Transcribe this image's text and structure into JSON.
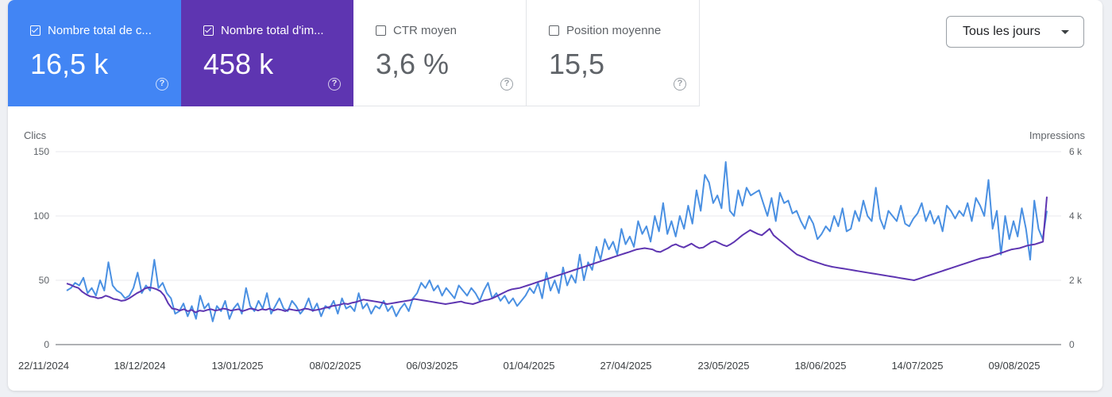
{
  "metrics": [
    {
      "label": "Nombre total de c...",
      "value": "16,5 k",
      "checked": true,
      "color": "#4285f4"
    },
    {
      "label": "Nombre total d'im...",
      "value": "458 k",
      "checked": true,
      "color": "#5e35b1"
    },
    {
      "label": "CTR moyen",
      "value": "3,6 %",
      "checked": false
    },
    {
      "label": "Position moyenne",
      "value": "15,5",
      "checked": false
    }
  ],
  "help_glyph": "?",
  "dropdown": {
    "label": "Tous les jours"
  },
  "chart_data": {
    "type": "line",
    "left_axis_label": "Clics",
    "right_axis_label": "Impressions",
    "left_ticks": [
      "150",
      "100",
      "50",
      "0"
    ],
    "right_ticks": [
      "6 k",
      "4 k",
      "2 k",
      "0"
    ],
    "left_range": [
      0,
      150
    ],
    "right_range": [
      0,
      6000
    ],
    "x_tick_labels": [
      "22/11/2024",
      "18/12/2024",
      "13/01/2025",
      "08/02/2025",
      "06/03/2025",
      "01/04/2025",
      "27/04/2025",
      "23/05/2025",
      "18/06/2025",
      "14/07/2025",
      "09/08/2025"
    ],
    "grid": true,
    "series": [
      {
        "axis": "left",
        "color": "#4a90e2",
        "values": [
          42,
          44,
          48,
          46,
          52,
          40,
          44,
          38,
          50,
          42,
          64,
          46,
          42,
          40,
          36,
          38,
          44,
          56,
          40,
          46,
          42,
          66,
          44,
          48,
          40,
          36,
          24,
          26,
          32,
          22,
          30,
          20,
          38,
          28,
          32,
          18,
          30,
          26,
          34,
          20,
          28,
          32,
          24,
          44,
          30,
          26,
          34,
          28,
          40,
          24,
          30,
          36,
          28,
          26,
          34,
          30,
          24,
          28,
          36,
          26,
          32,
          22,
          30,
          28,
          34,
          24,
          36,
          28,
          30,
          26,
          40,
          28,
          32,
          24,
          30,
          28,
          34,
          26,
          30,
          22,
          28,
          32,
          26,
          36,
          40,
          48,
          44,
          50,
          42,
          46,
          38,
          44,
          40,
          36,
          46,
          42,
          38,
          44,
          40,
          34,
          42,
          48,
          36,
          40,
          34,
          38,
          32,
          36,
          30,
          34,
          38,
          44,
          40,
          48,
          36,
          56,
          42,
          50,
          40,
          60,
          46,
          54,
          48,
          70,
          50,
          64,
          58,
          76,
          66,
          82,
          74,
          80,
          70,
          90,
          78,
          84,
          76,
          96,
          86,
          92,
          80,
          100,
          88,
          110,
          86,
          96,
          84,
          100,
          90,
          108,
          94,
          120,
          104,
          132,
          126,
          110,
          116,
          106,
          142,
          104,
          100,
          120,
          108,
          122,
          116,
          118,
          120,
          110,
          100,
          114,
          96,
          118,
          110,
          112,
          102,
          104,
          96,
          90,
          100,
          94,
          82,
          86,
          92,
          88,
          100,
          92,
          106,
          88,
          90,
          104,
          96,
          112,
          100,
          96,
          122,
          98,
          90,
          104,
          100,
          96,
          108,
          94,
          92,
          98,
          102,
          110,
          96,
          104,
          94,
          100,
          88,
          108,
          104,
          98,
          104,
          100,
          110,
          96,
          114,
          108,
          100,
          128,
          90,
          104,
          70,
          100,
          82,
          96,
          84,
          106,
          90,
          66,
          112,
          90,
          82,
          104
        ]
      },
      {
        "axis": "right",
        "color": "#5e35b1",
        "values": [
          1900,
          1860,
          1800,
          1760,
          1640,
          1560,
          1500,
          1480,
          1440,
          1460,
          1520,
          1480,
          1420,
          1400,
          1360,
          1380,
          1440,
          1520,
          1600,
          1660,
          1740,
          1780,
          1760,
          1720,
          1660,
          1520,
          1280,
          1120,
          1100,
          1060,
          1100,
          1040,
          1080,
          1000,
          1060,
          1040,
          1080,
          1100,
          1060,
          1080,
          1120,
          1100,
          1060,
          1080,
          1100,
          1040,
          1080,
          1120,
          1100,
          1060,
          1100,
          1080,
          1120,
          1060,
          1100,
          1080,
          1040,
          1100,
          1080,
          1060,
          1080,
          1120,
          1100,
          1060,
          1080,
          1100,
          1140,
          1160,
          1200,
          1220,
          1240,
          1280,
          1260,
          1300,
          1320,
          1360,
          1400,
          1380,
          1360,
          1340,
          1320,
          1300,
          1260,
          1280,
          1300,
          1320,
          1340,
          1360,
          1380,
          1420,
          1400,
          1380,
          1360,
          1340,
          1320,
          1300,
          1280,
          1260,
          1280,
          1300,
          1320,
          1340,
          1300,
          1280,
          1260,
          1300,
          1340,
          1380,
          1400,
          1440,
          1500,
          1560,
          1620,
          1680,
          1720,
          1740,
          1760,
          1800,
          1840,
          1880,
          1920,
          1960,
          2000,
          2040,
          2080,
          2120,
          2160,
          2200,
          2240,
          2280,
          2320,
          2360,
          2400,
          2440,
          2480,
          2520,
          2560,
          2600,
          2640,
          2680,
          2720,
          2760,
          2800,
          2840,
          2880,
          2920,
          2960,
          2980,
          3000,
          2980,
          2960,
          2900,
          2880,
          2940,
          3000,
          3080,
          3120,
          3060,
          3020,
          3080,
          3140,
          3060,
          3000,
          3020,
          3100,
          3180,
          3220,
          3160,
          3100,
          3060,
          3120,
          3200,
          3300,
          3400,
          3480,
          3560,
          3500,
          3440,
          3400,
          3500,
          3600,
          3400,
          3300,
          3200,
          3100,
          3000,
          2900,
          2800,
          2750,
          2700,
          2640,
          2600,
          2560,
          2520,
          2480,
          2450,
          2420,
          2400,
          2380,
          2360,
          2340,
          2320,
          2300,
          2280,
          2260,
          2240,
          2220,
          2200,
          2180,
          2160,
          2140,
          2120,
          2100,
          2080,
          2060,
          2040,
          2020,
          2000,
          2040,
          2080,
          2120,
          2160,
          2200,
          2240,
          2280,
          2320,
          2360,
          2400,
          2440,
          2480,
          2520,
          2560,
          2600,
          2640,
          2680,
          2700,
          2720,
          2760,
          2800,
          2840,
          2880,
          2920,
          2960,
          2980,
          3000,
          3040,
          3080,
          3100,
          3120,
          3160,
          3200,
          4600
        ]
      }
    ]
  }
}
